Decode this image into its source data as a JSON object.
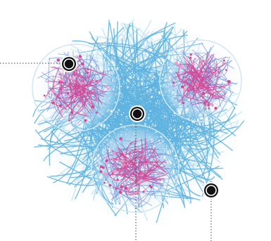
{
  "diagram": {
    "description_none": "",
    "colors": {
      "background": "#ffffff",
      "outer_fibers": "#5fb3df",
      "outer_fibers_light": "#a9d9f1",
      "inner_fibers": "#7b8fd6",
      "inner_accent": "#d24a96",
      "inner_accent_light": "#ef9bc6",
      "marker_fill": "#111111",
      "marker_ring": "#ffffff",
      "leader_line": "#444444"
    },
    "markers": [
      {
        "name": "marker-upper-left-sphere"
      },
      {
        "name": "marker-center"
      },
      {
        "name": "marker-lower-right-region"
      }
    ],
    "leaders": [
      {
        "name": "leader-line-left"
      },
      {
        "name": "leader-line-center-down"
      },
      {
        "name": "leader-line-right-down"
      }
    ]
  }
}
